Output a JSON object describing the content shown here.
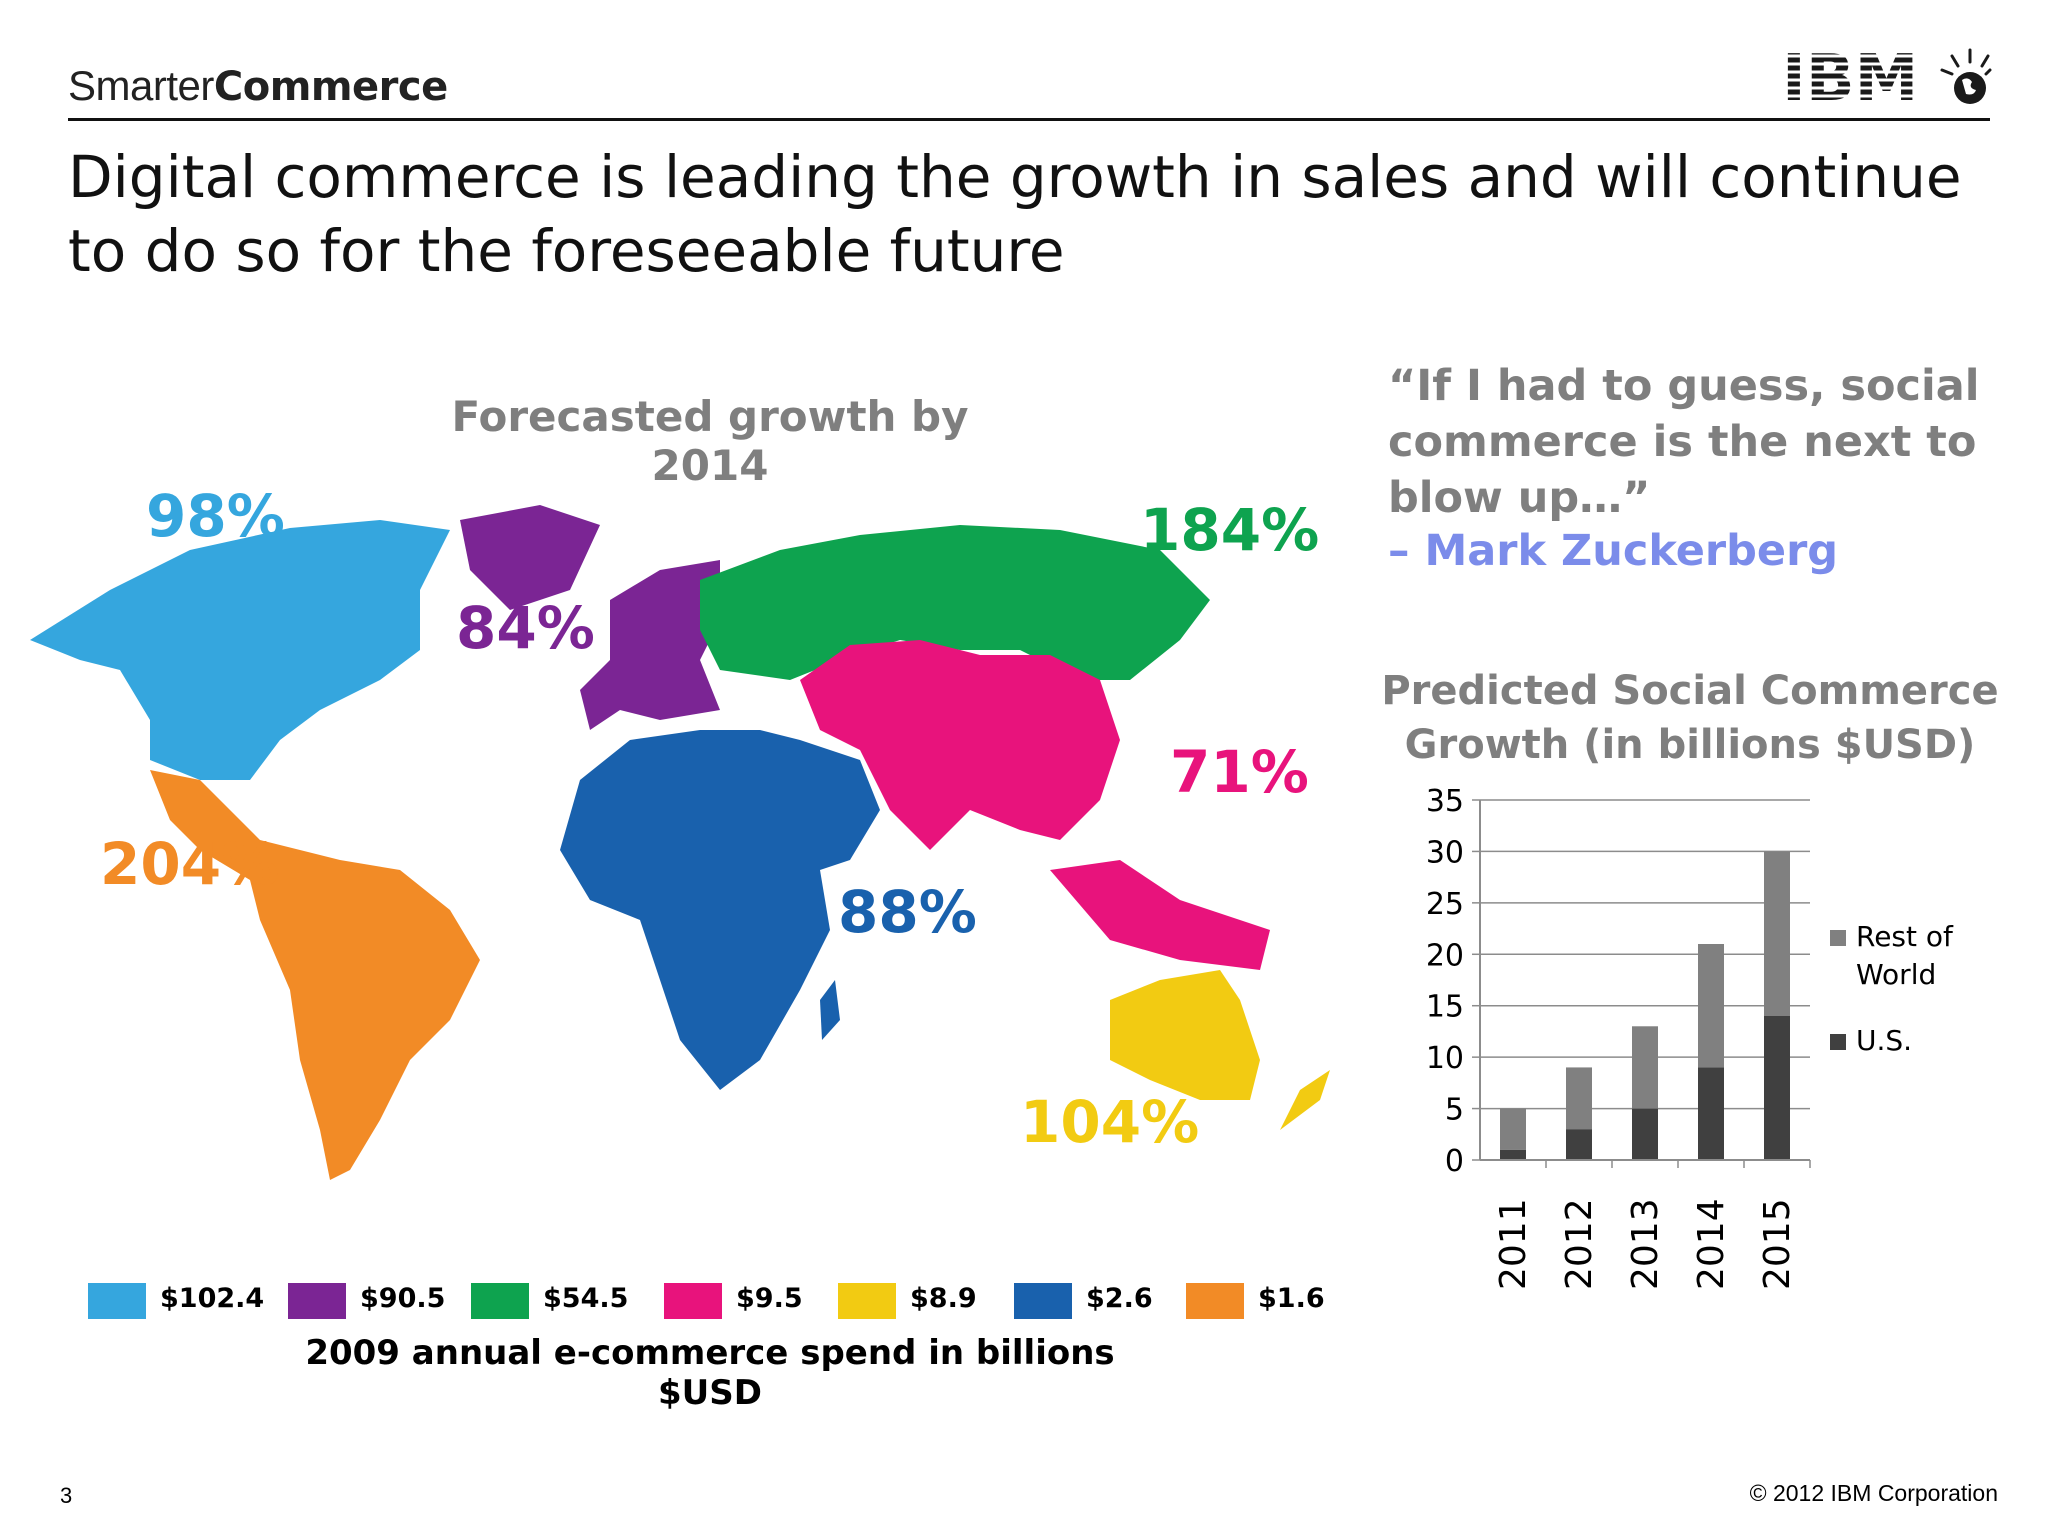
{
  "header": {
    "brand_light": "Smarter",
    "brand_bold": "Commerce",
    "logo_text": "IBM",
    "title": "Digital commerce is leading the growth in sales and will continue to do so for the foreseeable future"
  },
  "map": {
    "title": "Forecasted growth by 2014",
    "regions": [
      {
        "name": "North America",
        "growth": "98%",
        "spend": "$102.4",
        "color": "#35a6de"
      },
      {
        "name": "Europe",
        "growth": "84%",
        "spend": "$90.5",
        "color": "#7b2594"
      },
      {
        "name": "Russia",
        "growth": "184%",
        "spend": "$54.5",
        "color": "#0ea34f"
      },
      {
        "name": "Asia",
        "growth": "71%",
        "spend": "$9.5",
        "color": "#e8137c"
      },
      {
        "name": "Oceania",
        "growth": "104%",
        "spend": "$8.9",
        "color": "#f2cb12"
      },
      {
        "name": "Africa and Middle East",
        "growth": "88%",
        "spend": "$2.6",
        "color": "#1961ad"
      },
      {
        "name": "Latin America",
        "growth": "204%",
        "spend": "$1.6",
        "color": "#f28b26"
      }
    ],
    "legend_caption": "2009 annual e-commerce spend in billions $USD"
  },
  "quote": {
    "text": "“If I had to guess, social commerce is the next to blow up…”",
    "author": "– Mark Zuckerberg",
    "author_color": "#7b8cea"
  },
  "chart_data": {
    "type": "bar",
    "stacked": true,
    "title": "Predicted Social Commerce Growth (in billions $USD)",
    "categories": [
      "2011",
      "2012",
      "2013",
      "2014",
      "2015"
    ],
    "series": [
      {
        "name": "U.S.",
        "values": [
          1,
          3,
          5,
          9,
          14
        ],
        "color": "#404040"
      },
      {
        "name": "Rest of World",
        "values": [
          4,
          6,
          8,
          12,
          16
        ],
        "color": "#808080"
      }
    ],
    "yticks": [
      "0",
      "5",
      "10",
      "15",
      "20",
      "25",
      "30",
      "35"
    ],
    "ylim": [
      0,
      35
    ],
    "legend_position": "right",
    "grid": true
  },
  "footer": {
    "page_number": "3",
    "copyright": "© 2012 IBM Corporation"
  }
}
